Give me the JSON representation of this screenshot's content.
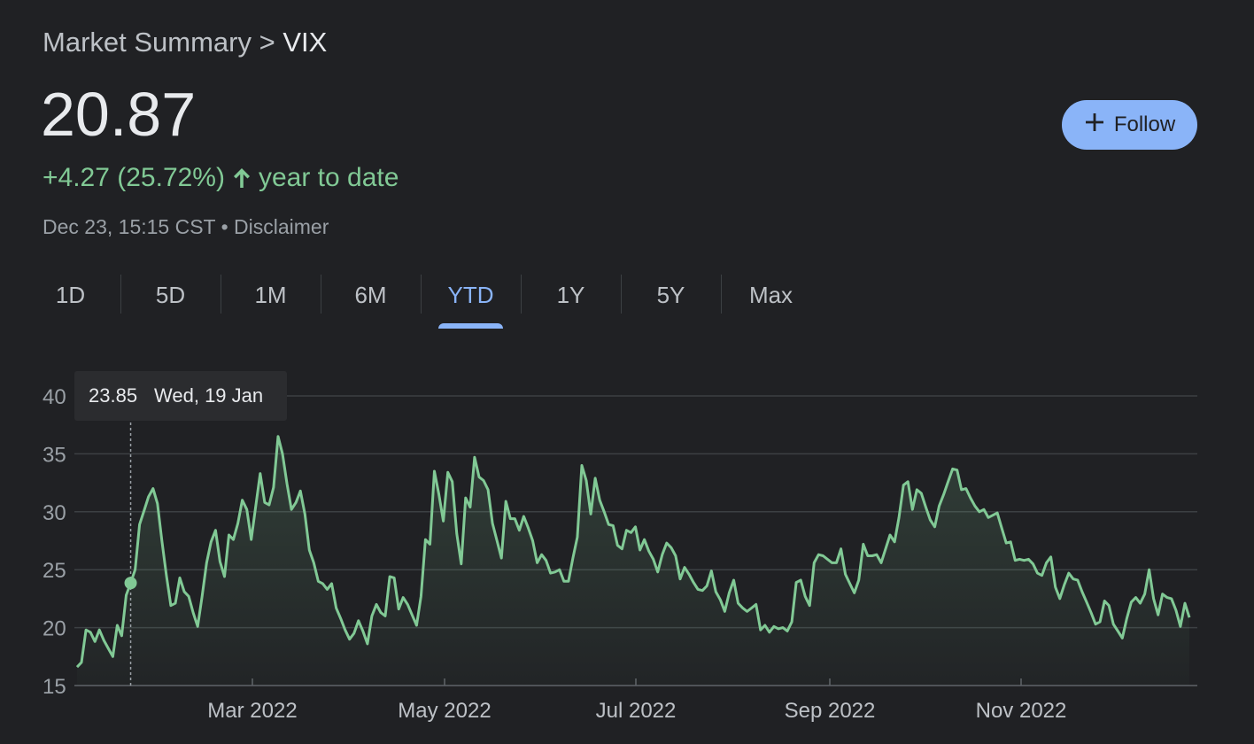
{
  "breadcrumb": {
    "parent": "Market Summary",
    "separator": ">",
    "current": "VIX"
  },
  "quote": {
    "price": "20.87",
    "change": "+4.27 (25.72%)",
    "change_period": "year to date",
    "timestamp": "Dec 23, 15:15 CST",
    "bullet": "•",
    "disclaimer": "Disclaimer"
  },
  "follow": {
    "label": "Follow",
    "icon": "plus-icon"
  },
  "tabs": [
    {
      "label": "1D"
    },
    {
      "label": "5D"
    },
    {
      "label": "1M"
    },
    {
      "label": "6M"
    },
    {
      "label": "YTD",
      "active": true
    },
    {
      "label": "1Y"
    },
    {
      "label": "5Y"
    },
    {
      "label": "Max"
    }
  ],
  "colors": {
    "accent": "#8ab4f8",
    "line": "#81c995",
    "background": "#202124",
    "grid": "#3c4043"
  },
  "tooltip": {
    "value": "23.85",
    "date": "Wed, 19 Jan"
  },
  "chart_data": {
    "type": "area",
    "ylim": [
      15,
      40
    ],
    "yticks": [
      40,
      35,
      30,
      25,
      20,
      15
    ],
    "xticks": [
      "Mar 2022",
      "May 2022",
      "Jul 2022",
      "Sep 2022",
      "Nov 2022"
    ],
    "grid": true,
    "highlight_index": 12,
    "series": [
      {
        "values": [
          16.6,
          17.0,
          19.8,
          19.6,
          18.8,
          19.8,
          18.9,
          18.2,
          17.5,
          20.2,
          19.3,
          22.8,
          23.85,
          25.0,
          28.9,
          30.1,
          31.3,
          32.0,
          30.7,
          27.5,
          24.5,
          21.9,
          22.1,
          24.3,
          23.1,
          22.7,
          21.3,
          20.1,
          22.7,
          25.6,
          27.4,
          28.4,
          25.7,
          24.4,
          28.0,
          27.6,
          29.0,
          31.0,
          30.2,
          27.6,
          30.5,
          33.3,
          30.8,
          30.6,
          32.1,
          36.5,
          35.0,
          32.4,
          30.2,
          30.8,
          31.8,
          29.8,
          26.7,
          25.6,
          24.0,
          23.8,
          23.3,
          23.8,
          21.7,
          20.8,
          19.8,
          19.0,
          19.5,
          20.6,
          19.7,
          18.6,
          21.0,
          22.0,
          21.3,
          21.0,
          24.4,
          24.3,
          21.6,
          22.6,
          22.0,
          21.1,
          20.2,
          22.7,
          27.6,
          27.2,
          33.5,
          31.5,
          29.2,
          33.4,
          32.6,
          28.1,
          25.5,
          31.2,
          30.4,
          34.7,
          33.0,
          32.7,
          31.9,
          29.0,
          27.5,
          26.0,
          30.9,
          29.4,
          29.4,
          28.4,
          29.6,
          28.6,
          27.5,
          25.6,
          26.3,
          25.8,
          24.7,
          24.8,
          25.0,
          24.0,
          24.0,
          26.0,
          27.8,
          34.0,
          32.7,
          29.8,
          32.9,
          31.0,
          30.0,
          28.9,
          28.8,
          27.1,
          26.8,
          28.4,
          28.2,
          28.7,
          26.7,
          27.6,
          26.6,
          25.9,
          24.8,
          26.3,
          27.3,
          26.9,
          26.2,
          24.2,
          25.2,
          24.6,
          23.9,
          23.3,
          23.2,
          23.6,
          24.9,
          23.1,
          22.4,
          21.4,
          23.0,
          24.1,
          22.1,
          21.7,
          21.4,
          21.7,
          22.0,
          19.8,
          20.2,
          19.6,
          20.1,
          19.9,
          20.0,
          19.7,
          20.5,
          23.9,
          24.1,
          22.7,
          21.9,
          25.6,
          26.3,
          26.2,
          25.9,
          25.6,
          25.6,
          26.8,
          24.6,
          23.8,
          23.0,
          24.1,
          27.2,
          26.2,
          26.2,
          26.3,
          25.6,
          26.8,
          28.0,
          27.4,
          29.5,
          32.3,
          32.6,
          30.2,
          31.9,
          31.6,
          30.4,
          29.3,
          28.7,
          30.5,
          31.5,
          32.6,
          33.7,
          33.6,
          31.9,
          32.0,
          31.2,
          30.5,
          30.0,
          30.2,
          29.5,
          29.7,
          29.9,
          28.6,
          27.3,
          27.4,
          25.8,
          25.9,
          25.8,
          25.9,
          25.5,
          24.7,
          24.5,
          25.6,
          26.1,
          23.5,
          22.5,
          23.7,
          24.7,
          24.2,
          24.1,
          23.1,
          22.2,
          21.3,
          20.3,
          20.5,
          22.3,
          21.9,
          20.3,
          19.7,
          19.1,
          20.8,
          22.2,
          22.6,
          22.1,
          22.9,
          25.0,
          22.5,
          21.1,
          22.9,
          22.6,
          22.5,
          21.5,
          20.1,
          22.1,
          20.87
        ]
      }
    ]
  }
}
